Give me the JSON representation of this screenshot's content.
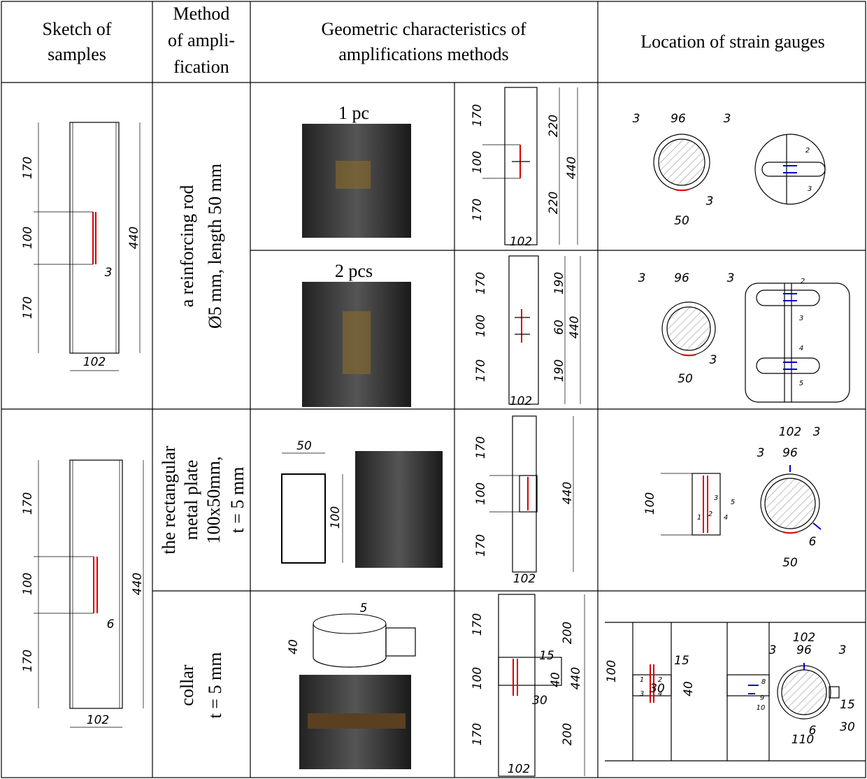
{
  "header": [
    [
      "Sketch of",
      "samples"
    ],
    [
      "Method",
      "of ampli-",
      "fication"
    ],
    [
      "Geometric characteristics of",
      "amplifications methods"
    ],
    [
      "Location of strain gauges"
    ]
  ],
  "methods": [
    [
      "a reinforcing rod",
      "Ø5 mm, length 50 mm"
    ],
    [
      "the rectangular",
      "metal plate",
      "100x50mm,",
      "t = 5 mm"
    ],
    [
      "collar",
      "t = 5 mm"
    ]
  ],
  "samples": [
    [
      "170",
      "100",
      "170",
      "440",
      "3",
      "102"
    ],
    [
      "170",
      "100",
      "170",
      "440",
      "6",
      "102"
    ]
  ],
  "rows": [
    {
      "count": "1 pc",
      "geometry": [
        "170",
        "100",
        "170",
        "220",
        "220",
        "440",
        "102"
      ],
      "gauges": [
        "3",
        "96",
        "3",
        "3",
        "50",
        "2",
        "3"
      ]
    },
    {
      "count": "2 pcs",
      "geometry": [
        "170",
        "100",
        "170",
        "190",
        "60",
        "190",
        "440",
        "102"
      ],
      "gauges": [
        "3",
        "96",
        "3",
        "3",
        "50",
        "2",
        "3",
        "4",
        "5"
      ]
    },
    {
      "sketch": [
        "50",
        "100"
      ],
      "geometry": [
        "170",
        "100",
        "170",
        "440",
        "102"
      ],
      "gauges": [
        "100",
        "1",
        "2",
        "3",
        "4",
        "5",
        "102",
        "3",
        "3",
        "96",
        "6",
        "50"
      ]
    },
    {
      "sketch": [
        "5",
        "40"
      ],
      "geometry": [
        "170",
        "100",
        "170",
        "15",
        "40",
        "30",
        "200",
        "200",
        "440",
        "102"
      ],
      "gauges": [
        "100",
        "1",
        "2",
        "3",
        "4",
        "15",
        "30",
        "40",
        "8",
        "9",
        "10",
        "102",
        "3",
        "96",
        "3",
        "6",
        "110",
        "15",
        "30"
      ]
    }
  ]
}
